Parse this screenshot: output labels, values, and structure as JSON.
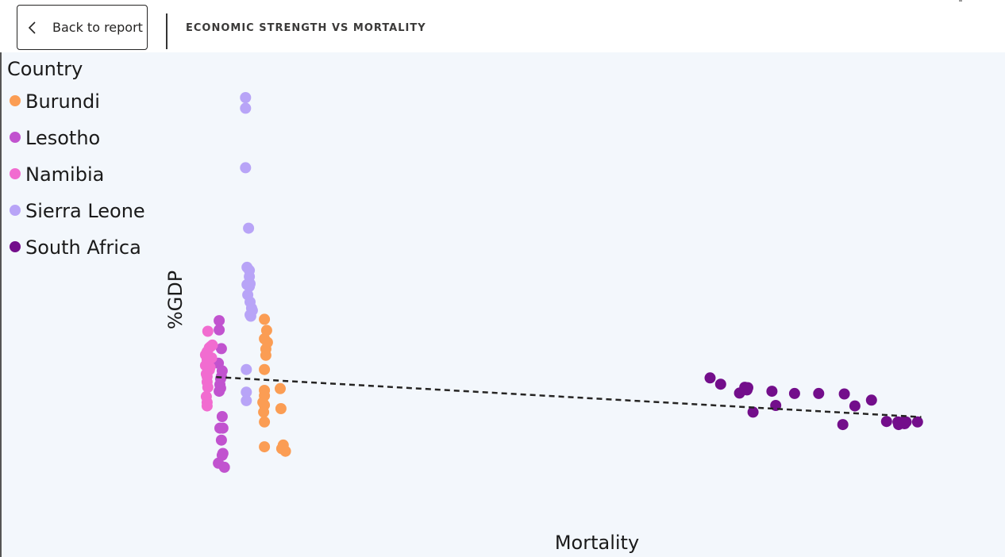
{
  "header": {
    "back_label": "Back to report",
    "title": "ECONOMIC STRENGTH VS MORTALITY"
  },
  "icons": {
    "back": "chevron-left-icon"
  },
  "chart_data": {
    "type": "scatter",
    "title": "",
    "xlabel": "Mortality",
    "ylabel": "%GDP",
    "xlim": [
      0,
      100
    ],
    "ylim": [
      0,
      100
    ],
    "grid": false,
    "legend": {
      "title": "Country",
      "position": "top-left"
    },
    "trendline": {
      "style": "dashed",
      "color": "#252423",
      "points": [
        [
          5.5,
          33
        ],
        [
          99,
          24
        ]
      ]
    },
    "series": [
      {
        "name": "Burundi",
        "color": "#fb9d54",
        "points": [
          [
            11.9,
            46
          ],
          [
            12.2,
            43.5
          ],
          [
            11.9,
            41.6
          ],
          [
            12.3,
            40.8
          ],
          [
            12.1,
            37.9
          ],
          [
            11.9,
            34.7
          ],
          [
            12.1,
            39.3
          ],
          [
            14.0,
            30.4
          ],
          [
            11.9,
            30.0
          ],
          [
            11.9,
            28.8
          ],
          [
            11.7,
            27.3
          ],
          [
            11.9,
            26.7
          ],
          [
            11.8,
            25.1
          ],
          [
            11.9,
            22.9
          ],
          [
            14.1,
            25.9
          ],
          [
            11.9,
            17.3
          ],
          [
            14.4,
            17.7
          ],
          [
            14.2,
            16.9
          ],
          [
            14.7,
            16.3
          ]
        ]
      },
      {
        "name": "Lesotho",
        "color": "#c153cf",
        "points": [
          [
            5.9,
            45.7
          ],
          [
            5.9,
            43.6
          ],
          [
            6.2,
            39.4
          ],
          [
            5.8,
            36.1
          ],
          [
            6.3,
            34.4
          ],
          [
            6.2,
            33.1
          ],
          [
            6.1,
            32.6
          ],
          [
            6.0,
            31.3
          ],
          [
            6.1,
            30.5
          ],
          [
            5.9,
            29.8
          ],
          [
            6.3,
            24.1
          ],
          [
            6.0,
            21.5
          ],
          [
            6.4,
            21.5
          ],
          [
            6.2,
            18.8
          ],
          [
            6.4,
            15.8
          ],
          [
            6.3,
            15.4
          ],
          [
            5.8,
            13.6
          ],
          [
            6.6,
            12.7
          ]
        ]
      },
      {
        "name": "Namibia",
        "color": "#f16cd0",
        "points": [
          [
            4.4,
            43.3
          ],
          [
            5.0,
            40.2
          ],
          [
            4.8,
            39.9
          ],
          [
            4.6,
            39.6
          ],
          [
            4.3,
            38.7
          ],
          [
            4.1,
            38.0
          ],
          [
            4.9,
            37.3
          ],
          [
            4.3,
            36.9
          ],
          [
            4.1,
            35.6
          ],
          [
            4.7,
            35.2
          ],
          [
            4.6,
            34.6
          ],
          [
            4.2,
            33.7
          ],
          [
            4.3,
            33.1
          ],
          [
            4.3,
            31.9
          ],
          [
            4.4,
            30.7
          ],
          [
            4.2,
            28.6
          ],
          [
            4.3,
            27.3
          ],
          [
            4.3,
            26.5
          ]
        ]
      },
      {
        "name": "Sierra Leone",
        "color": "#b8a4f7",
        "points": [
          [
            9.4,
            95.9
          ],
          [
            9.4,
            93.5
          ],
          [
            9.4,
            80.1
          ],
          [
            9.8,
            66.5
          ],
          [
            9.6,
            57.7
          ],
          [
            9.9,
            57.0
          ],
          [
            9.9,
            55.6
          ],
          [
            10.0,
            54.0
          ],
          [
            9.6,
            53.8
          ],
          [
            9.9,
            53.4
          ],
          [
            9.7,
            51.5
          ],
          [
            10.0,
            49.9
          ],
          [
            10.2,
            48.5
          ],
          [
            10.3,
            48.0
          ],
          [
            10.0,
            47.0
          ],
          [
            10.1,
            46.7
          ],
          [
            9.5,
            34.7
          ],
          [
            9.5,
            29.6
          ],
          [
            9.5,
            27.7
          ]
        ]
      },
      {
        "name": "South Africa",
        "color": "#730e8b",
        "points": [
          [
            71.0,
            32.8
          ],
          [
            72.4,
            31.4
          ],
          [
            75.6,
            30.7
          ],
          [
            76.0,
            30.6
          ],
          [
            75.9,
            30.1
          ],
          [
            74.9,
            29.4
          ],
          [
            79.2,
            29.8
          ],
          [
            82.2,
            29.3
          ],
          [
            85.4,
            29.3
          ],
          [
            88.8,
            29.2
          ],
          [
            92.4,
            27.8
          ],
          [
            79.7,
            26.6
          ],
          [
            76.7,
            25.1
          ],
          [
            88.6,
            22.3
          ],
          [
            90.2,
            26.5
          ],
          [
            94.4,
            23.0
          ],
          [
            95.9,
            22.9
          ],
          [
            96.5,
            22.8
          ],
          [
            98.5,
            22.9
          ],
          [
            97.0,
            22.9
          ],
          [
            96.2,
            22.6
          ],
          [
            96.0,
            22.3
          ],
          [
            96.8,
            22.5
          ]
        ]
      }
    ]
  }
}
